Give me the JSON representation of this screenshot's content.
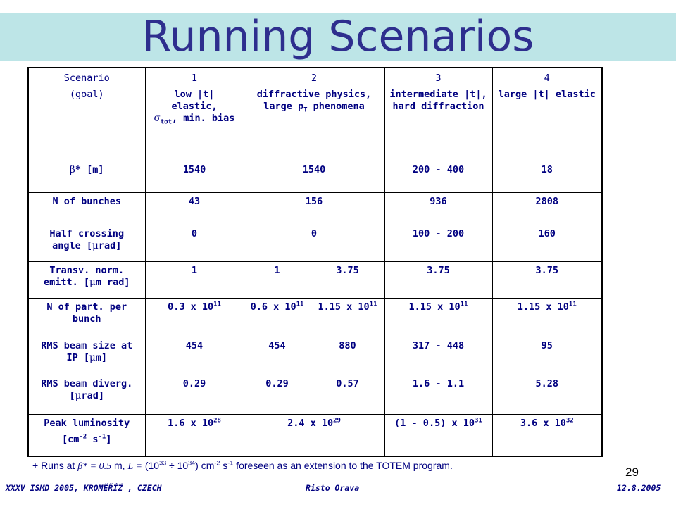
{
  "title": "Running Scenarios",
  "table": {
    "header": [
      {
        "l1": "Scenario",
        "l2": "(goal)"
      },
      {
        "l1": "1",
        "l2a": "low |t| elastic,",
        "sym": "σ",
        "sub": "tot",
        "l2b": ", min. bias"
      },
      {
        "l1": "2",
        "l2a": "diffractive physics,",
        "l2b": "large p",
        "sub": "T",
        "l2c": " phenomena"
      },
      {
        "l1": "3",
        "l2": "intermediate |t|,",
        "l3": "hard diffraction"
      },
      {
        "l1": "4",
        "l2": "large |t| elastic"
      }
    ],
    "beta": {
      "sym": "β",
      "label": "* [m]",
      "v1": "1540",
      "v2": "1540",
      "v3": "200 - 400",
      "v4": "18"
    },
    "bunches": {
      "label": "N of bunches",
      "v1": "43",
      "v2": "156",
      "v3": "936",
      "v4": "2808"
    },
    "crossing": {
      "label_a": "Half crossing angle [",
      "sym": "μ",
      "label_b": "rad]",
      "v1": "0",
      "v2": "0",
      "v3": "100 - 200",
      "v4": "160"
    },
    "emitt": {
      "label_a": "Transv. norm. emitt. [",
      "sym": "μ",
      "label_b": "m rad]",
      "v1": "1",
      "v2a": "1",
      "v2b": "3.75",
      "v3": "3.75",
      "v4": "3.75"
    },
    "npart": {
      "label": "N of part. per bunch",
      "v1": "0.3 x 10",
      "v1e": "11",
      "v2a": "0.6 x 10",
      "v2ae": "11",
      "v2b": "1.15 x 10",
      "v2be": "11",
      "v3": "1.15 x 10",
      "v3e": "11",
      "v4": "1.15 x 10",
      "v4e": "11"
    },
    "size": {
      "label_a": "RMS beam size at IP [",
      "sym": "μ",
      "label_b": "m]",
      "v1": "454",
      "v2a": "454",
      "v2b": "880",
      "v3": "317 - 448",
      "v4": "95"
    },
    "diverg": {
      "label_a": "RMS beam diverg. [",
      "sym": "μ",
      "label_b": "rad]",
      "v1": "0.29",
      "v2a": "0.29",
      "v2b": "0.57",
      "v3": "1.6 - 1.1",
      "v4": "5.28"
    },
    "lumi": {
      "label1": "Peak luminosity",
      "label2a": "[cm",
      "e1": "-2",
      "label2b": " s",
      "e2": "-1",
      "label2c": "]",
      "v1": "1.6 x 10",
      "v1e": "28",
      "v2": "2.4 x 10",
      "v2e": "29",
      "v3": "(1 - 0.5) x 10",
      "v3e": "31",
      "v4": "3.6 x 10",
      "v4e": "32"
    }
  },
  "footnote": {
    "pre": "+ Runs at ",
    "sym": "β* = 0.5",
    "mid": " m, ",
    "lsym": "L =",
    "p1": " (10",
    "e1": "33",
    "div": " ÷ ",
    "p2": "10",
    "e2": "34",
    "p3": ") cm",
    "e3": "-2",
    "p4": " s",
    "e4": "-1",
    "post": " foreseen as an extension to the TOTEM program."
  },
  "page_number": "29",
  "footer": {
    "left": "XXXV ISMD 2005, KROMĚŘÍŽ , CZECH",
    "middle": "Risto Orava",
    "right": "12.8.2005"
  }
}
